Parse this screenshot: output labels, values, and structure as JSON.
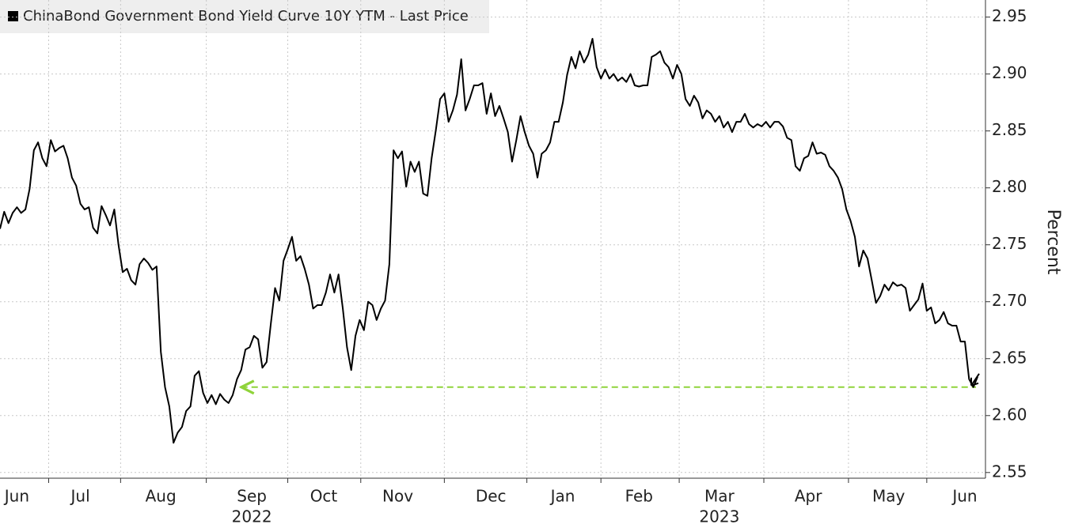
{
  "chart_data": {
    "type": "line",
    "legend": "ChinaBond Government Bond Yield Curve 10Y YTM - Last Price",
    "y_axis_label": "Percent",
    "series": [
      {
        "name": "ChinaBond Government Bond Yield Curve 10Y YTM - Last Price",
        "color": "#000000",
        "values": [
          2.764,
          2.779,
          2.769,
          2.778,
          2.783,
          2.778,
          2.781,
          2.799,
          2.833,
          2.84,
          2.826,
          2.819,
          2.842,
          2.832,
          2.835,
          2.837,
          2.826,
          2.809,
          2.802,
          2.786,
          2.781,
          2.783,
          2.765,
          2.76,
          2.784,
          2.776,
          2.767,
          2.781,
          2.75,
          2.726,
          2.729,
          2.719,
          2.715,
          2.733,
          2.738,
          2.734,
          2.728,
          2.731,
          2.656,
          2.625,
          2.608,
          2.576,
          2.585,
          2.59,
          2.604,
          2.608,
          2.635,
          2.639,
          2.62,
          2.611,
          2.618,
          2.61,
          2.619,
          2.614,
          2.611,
          2.618,
          2.632,
          2.64,
          2.658,
          2.66,
          2.67,
          2.667,
          2.642,
          2.647,
          2.681,
          2.712,
          2.701,
          2.736,
          2.746,
          2.757,
          2.736,
          2.74,
          2.729,
          2.715,
          2.694,
          2.697,
          2.697,
          2.708,
          2.724,
          2.708,
          2.724,
          2.694,
          2.66,
          2.64,
          2.67,
          2.684,
          2.675,
          2.7,
          2.697,
          2.684,
          2.694,
          2.701,
          2.733,
          2.833,
          2.826,
          2.832,
          2.801,
          2.823,
          2.814,
          2.823,
          2.795,
          2.793,
          2.826,
          2.851,
          2.878,
          2.883,
          2.858,
          2.868,
          2.882,
          2.913,
          2.868,
          2.878,
          2.89,
          2.89,
          2.892,
          2.865,
          2.883,
          2.863,
          2.872,
          2.861,
          2.849,
          2.823,
          2.842,
          2.863,
          2.849,
          2.837,
          2.83,
          2.809,
          2.83,
          2.833,
          2.84,
          2.858,
          2.858,
          2.875,
          2.899,
          2.915,
          2.905,
          2.92,
          2.91,
          2.917,
          2.931,
          2.906,
          2.896,
          2.904,
          2.896,
          2.9,
          2.894,
          2.897,
          2.893,
          2.9,
          2.89,
          2.889,
          2.89,
          2.89,
          2.915,
          2.917,
          2.92,
          2.91,
          2.906,
          2.896,
          2.908,
          2.9,
          2.878,
          2.872,
          2.881,
          2.875,
          2.861,
          2.868,
          2.865,
          2.858,
          2.863,
          2.853,
          2.858,
          2.849,
          2.858,
          2.858,
          2.865,
          2.856,
          2.853,
          2.856,
          2.854,
          2.858,
          2.853,
          2.858,
          2.858,
          2.854,
          2.844,
          2.842,
          2.819,
          2.815,
          2.826,
          2.828,
          2.84,
          2.83,
          2.831,
          2.829,
          2.819,
          2.815,
          2.809,
          2.799,
          2.781,
          2.771,
          2.757,
          2.731,
          2.745,
          2.738,
          2.719,
          2.699,
          2.705,
          2.715,
          2.71,
          2.717,
          2.714,
          2.715,
          2.712,
          2.692,
          2.697,
          2.702,
          2.716,
          2.692,
          2.695,
          2.681,
          2.684,
          2.691,
          2.681,
          2.679,
          2.679,
          2.665,
          2.665,
          2.632,
          2.625,
          2.634
        ]
      }
    ],
    "xticks": [
      {
        "value": 4,
        "label": "Jun"
      },
      {
        "value": 19,
        "label": "Jul"
      },
      {
        "value": 38,
        "label": "Aug"
      },
      {
        "value": 59.5,
        "label": "Sep",
        "year": "2022"
      },
      {
        "value": 76.5,
        "label": "Oct"
      },
      {
        "value": 94,
        "label": "Nov"
      },
      {
        "value": 116,
        "label": "Dec"
      },
      {
        "value": 133,
        "label": "Jan"
      },
      {
        "value": 151,
        "label": "Feb"
      },
      {
        "value": 170,
        "label": "Mar",
        "year": "2023"
      },
      {
        "value": 191,
        "label": "Apr"
      },
      {
        "value": 210,
        "label": "May"
      },
      {
        "value": 228,
        "label": "Jun"
      }
    ],
    "xlim": [
      0,
      231
    ],
    "ylim": [
      2.545,
      2.965
    ],
    "yticks": [
      2.55,
      {
        "value": 2.6,
        "label": "2.60"
      },
      2.65,
      {
        "value": 2.7,
        "label": "2.70"
      },
      2.75,
      {
        "value": 2.8,
        "label": "2.80"
      },
      2.85,
      {
        "value": 2.9,
        "label": "2.90"
      },
      2.95
    ],
    "reference_line": {
      "value": 2.625,
      "start": 57,
      "color": "#8fd33a"
    },
    "grid": true
  }
}
